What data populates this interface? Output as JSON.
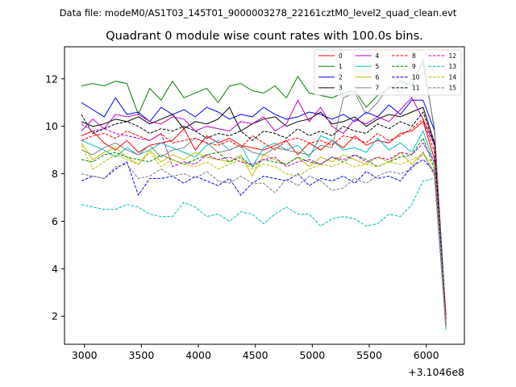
{
  "figure": {
    "suptitle": "Data file: modeM0/AS1T03_145T01_9000003278_22161cztM0_level2_quad_clean.evt",
    "x_offset_label": "+3.1046e8"
  },
  "chart_data": {
    "type": "line",
    "title": "Quadrant 0 module wise count rates with 100.0s bins.",
    "xlabel": "",
    "ylabel": "",
    "xlim": [
      2825,
      6335
    ],
    "ylim": [
      0.82,
      13.35
    ],
    "x_ticks": [
      3000,
      3500,
      4000,
      4500,
      5000,
      5500,
      6000
    ],
    "x_tick_labels": [
      "3000",
      "3500",
      "4000",
      "4500",
      "5000",
      "5500",
      "6000"
    ],
    "y_ticks": [
      2,
      4,
      6,
      8,
      10,
      12
    ],
    "y_tick_labels": [
      "2",
      "4",
      "6",
      "8",
      "10",
      "12"
    ],
    "grid": false,
    "legend_position": "upper-right",
    "legend_columns": 4,
    "x": [
      2973,
      3073,
      3173,
      3273,
      3373,
      3473,
      3573,
      3673,
      3773,
      3873,
      3973,
      4073,
      4173,
      4273,
      4373,
      4473,
      4573,
      4673,
      4773,
      4873,
      4973,
      5073,
      5173,
      5273,
      5373,
      5473,
      5573,
      5673,
      5773,
      5873,
      5973,
      6073,
      6173
    ],
    "series": [
      {
        "name": "0",
        "color": "#ff0000",
        "dash": "solid",
        "values": [
          9.6,
          9.8,
          9.3,
          9.0,
          9.4,
          8.9,
          9.2,
          9.3,
          9.4,
          9.9,
          9.0,
          9.6,
          9.3,
          9.5,
          9.2,
          9.1,
          9.0,
          9.2,
          9.4,
          8.8,
          9.3,
          9.0,
          9.4,
          9.1,
          9.6,
          9.2,
          9.4,
          9.3,
          9.7,
          9.8,
          10.2,
          8.6,
          2.1
        ]
      },
      {
        "name": "1",
        "color": "#008000",
        "dash": "solid",
        "values": [
          11.7,
          11.8,
          11.7,
          11.9,
          11.8,
          10.5,
          11.6,
          11.1,
          11.9,
          11.2,
          11.4,
          11.6,
          11.0,
          11.7,
          11.8,
          11.5,
          11.4,
          11.7,
          11.2,
          12.1,
          11.4,
          11.3,
          11.2,
          11.4,
          11.5,
          10.8,
          11.3,
          11.6,
          11.9,
          11.7,
          12.8,
          9.8,
          1.6
        ]
      },
      {
        "name": "2",
        "color": "#0000ff",
        "dash": "solid",
        "values": [
          11.0,
          10.7,
          10.4,
          11.2,
          10.5,
          10.6,
          10.2,
          10.8,
          10.5,
          10.7,
          10.4,
          10.8,
          10.6,
          10.3,
          10.5,
          10.4,
          10.8,
          10.5,
          10.3,
          10.4,
          10.6,
          10.5,
          10.3,
          10.5,
          10.2,
          10.6,
          10.4,
          10.9,
          10.5,
          11.1,
          11.1,
          9.8,
          1.9
        ]
      },
      {
        "name": "3",
        "color": "#000000",
        "dash": "solid",
        "values": [
          10.2,
          10.0,
          10.1,
          10.3,
          10.2,
          10.4,
          10.1,
          10.3,
          10.5,
          9.9,
          10.2,
          10.1,
          10.3,
          10.8,
          9.8,
          10.1,
          10.3,
          10.4,
          10.0,
          10.2,
          10.3,
          10.6,
          10.1,
          10.2,
          10.4,
          10.0,
          10.3,
          10.5,
          10.4,
          10.6,
          10.8,
          9.3,
          1.8
        ]
      },
      {
        "name": "4",
        "color": "#bf00bf",
        "dash": "solid",
        "values": [
          9.8,
          10.3,
          9.9,
          10.5,
          10.4,
          10.5,
          10.2,
          10.1,
          10.4,
          10.3,
          9.8,
          10.0,
          9.9,
          9.8,
          10.2,
          10.1,
          10.4,
          9.8,
          10.1,
          11.1,
          10.2,
          10.8,
          10.0,
          9.7,
          10.3,
          10.1,
          10.4,
          10.2,
          10.7,
          11.2,
          10.3,
          9.2,
          1.7
        ]
      },
      {
        "name": "5",
        "color": "#00bfbf",
        "dash": "solid",
        "values": [
          9.4,
          9.2,
          9.0,
          8.7,
          9.1,
          8.8,
          9.0,
          9.3,
          9.1,
          8.9,
          8.7,
          9.2,
          9.4,
          9.0,
          9.2,
          8.3,
          9.1,
          9.3,
          9.0,
          9.2,
          8.7,
          9.6,
          9.4,
          9.0,
          9.1,
          8.9,
          9.5,
          9.0,
          9.3,
          8.9,
          9.8,
          8.4,
          1.6
        ]
      },
      {
        "name": "6",
        "color": "#bfbf00",
        "dash": "solid",
        "values": [
          9.3,
          8.6,
          8.9,
          9.1,
          8.7,
          8.4,
          9.0,
          8.5,
          8.8,
          8.6,
          8.9,
          8.7,
          8.6,
          8.5,
          8.8,
          7.9,
          8.8,
          8.6,
          8.4,
          8.7,
          8.3,
          8.7,
          8.5,
          8.8,
          8.6,
          8.4,
          8.7,
          8.5,
          8.9,
          8.4,
          8.9,
          8.0,
          1.8
        ]
      },
      {
        "name": "7",
        "color": "#808080",
        "dash": "solid",
        "values": [
          9.0,
          8.8,
          9.1,
          9.3,
          9.0,
          8.8,
          9.2,
          8.7,
          9.0,
          9.1,
          9.5,
          9.3,
          8.9,
          9.0,
          9.2,
          8.9,
          8.8,
          9.1,
          9.0,
          8.9,
          8.8,
          9.2,
          9.1,
          11.2,
          11.4,
          10.5,
          11.0,
          11.7,
          11.4,
          12.0,
          12.6,
          9.9,
          1.5
        ]
      },
      {
        "name": "8",
        "color": "#ff0000",
        "dash": "dashed",
        "values": [
          9.4,
          9.6,
          9.7,
          9.5,
          9.8,
          9.6,
          9.4,
          9.7,
          9.3,
          9.4,
          9.5,
          9.3,
          9.2,
          9.4,
          9.1,
          9.6,
          9.3,
          9.0,
          9.4,
          9.5,
          9.3,
          9.4,
          9.2,
          9.6,
          9.5,
          9.3,
          9.7,
          9.4,
          9.6,
          9.9,
          10.3,
          8.9,
          1.8
        ]
      },
      {
        "name": "9",
        "color": "#008000",
        "dash": "dashed",
        "values": [
          8.6,
          8.5,
          8.8,
          8.9,
          8.7,
          8.6,
          8.5,
          8.8,
          8.6,
          8.4,
          8.6,
          8.8,
          8.9,
          8.5,
          8.7,
          8.3,
          8.6,
          8.5,
          8.4,
          8.7,
          8.5,
          8.4,
          8.7,
          8.5,
          8.8,
          8.6,
          8.3,
          8.5,
          8.7,
          8.8,
          9.5,
          8.2,
          1.6
        ]
      },
      {
        "name": "10",
        "color": "#0000ff",
        "dash": "dashed",
        "values": [
          7.7,
          7.9,
          7.8,
          8.2,
          8.5,
          7.1,
          7.8,
          7.8,
          7.9,
          7.6,
          7.9,
          7.7,
          7.5,
          7.8,
          7.1,
          7.6,
          7.9,
          7.8,
          7.7,
          8.0,
          7.5,
          7.8,
          7.7,
          7.9,
          7.6,
          8.1,
          7.8,
          7.9,
          7.7,
          8.3,
          8.6,
          8.1,
          1.7
        ]
      },
      {
        "name": "11",
        "color": "#000000",
        "dash": "dashed",
        "values": [
          10.5,
          9.7,
          9.9,
          10.1,
          10.2,
          10.0,
          9.7,
          9.9,
          9.8,
          10.0,
          9.8,
          9.5,
          9.7,
          9.6,
          9.8,
          9.4,
          9.8,
          9.7,
          9.5,
          9.9,
          9.6,
          9.8,
          9.6,
          10.0,
          9.8,
          9.7,
          10.1,
          9.9,
          10.2,
          10.0,
          10.6,
          9.2,
          1.7
        ]
      },
      {
        "name": "12",
        "color": "#bf00bf",
        "dash": "dashed",
        "values": [
          10.1,
          9.8,
          9.9,
          9.7,
          9.6,
          9.5,
          9.4,
          9.7,
          8.3,
          8.5,
          8.4,
          8.8,
          8.6,
          8.7,
          8.5,
          8.4,
          8.6,
          8.7,
          8.3,
          8.5,
          8.6,
          8.4,
          8.7,
          8.6,
          8.8,
          8.5,
          8.7,
          8.6,
          8.9,
          8.8,
          9.3,
          8.5,
          1.7
        ]
      },
      {
        "name": "13",
        "color": "#00bfbf",
        "dash": "dashed",
        "values": [
          6.7,
          6.6,
          6.5,
          6.5,
          6.7,
          6.6,
          6.3,
          6.2,
          6.2,
          6.8,
          6.6,
          6.2,
          6.3,
          6.0,
          6.4,
          6.3,
          5.9,
          6.3,
          6.6,
          6.3,
          6.3,
          5.8,
          6.1,
          6.2,
          6.1,
          5.8,
          5.9,
          6.3,
          6.2,
          6.7,
          7.7,
          7.8,
          1.4
        ]
      },
      {
        "name": "14",
        "color": "#bfbf00",
        "dash": "dashed",
        "values": [
          9.2,
          8.2,
          8.5,
          8.8,
          8.6,
          8.4,
          8.9,
          8.3,
          8.6,
          8.4,
          8.3,
          8.5,
          8.2,
          8.4,
          8.6,
          8.2,
          8.4,
          8.3,
          8.0,
          7.9,
          8.2,
          8.4,
          8.3,
          8.5,
          8.3,
          8.4,
          8.3,
          8.5,
          8.4,
          8.6,
          8.8,
          8.4,
          1.7
        ]
      },
      {
        "name": "15",
        "color": "#808080",
        "dash": "dashed",
        "values": [
          8.0,
          7.9,
          7.8,
          8.3,
          8.4,
          7.8,
          7.9,
          8.2,
          7.9,
          8.0,
          7.8,
          8.1,
          7.7,
          7.6,
          7.9,
          7.6,
          7.6,
          7.2,
          7.8,
          7.5,
          7.9,
          7.7,
          7.3,
          7.4,
          7.8,
          7.6,
          7.9,
          8.1,
          8.0,
          8.2,
          8.9,
          7.9,
          1.5
        ]
      }
    ]
  }
}
